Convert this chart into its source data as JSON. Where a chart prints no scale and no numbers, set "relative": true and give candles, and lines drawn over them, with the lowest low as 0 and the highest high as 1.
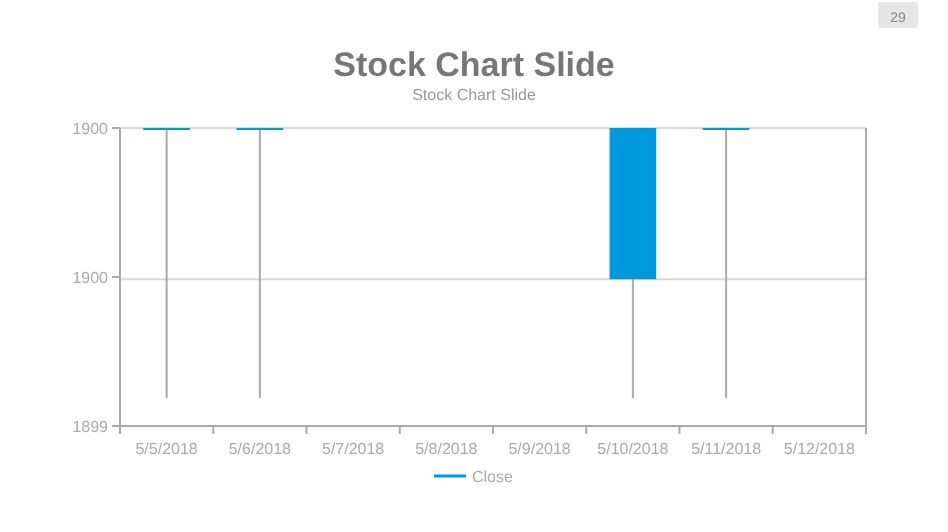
{
  "chart_data": {
    "type": "candlestick",
    "title": "Stock Chart Slide",
    "subtitle": "Stock Chart Slide",
    "categories": [
      "5/5/2018",
      "5/6/2018",
      "5/7/2018",
      "5/8/2018",
      "5/9/2018",
      "5/10/2018",
      "5/11/2018",
      "5/12/2018"
    ],
    "series": [
      {
        "name": "Close",
        "color": "#0099dd",
        "ohlc": [
          [
            1,
            1,
            0,
            1
          ],
          [
            1,
            1,
            0,
            1
          ],
          null,
          null,
          null,
          [
            0.44,
            1,
            0,
            1
          ],
          [
            1,
            1,
            0,
            1
          ],
          null
        ]
      }
    ],
    "relative": true,
    "legend": "bottom",
    "ref_lines": [
      {
        "axis": "y",
        "value": 0.44,
        "color": "#d9d9d9"
      }
    ],
    "annotations": [
      "29",
      "1900",
      "1900",
      "1899"
    ]
  }
}
